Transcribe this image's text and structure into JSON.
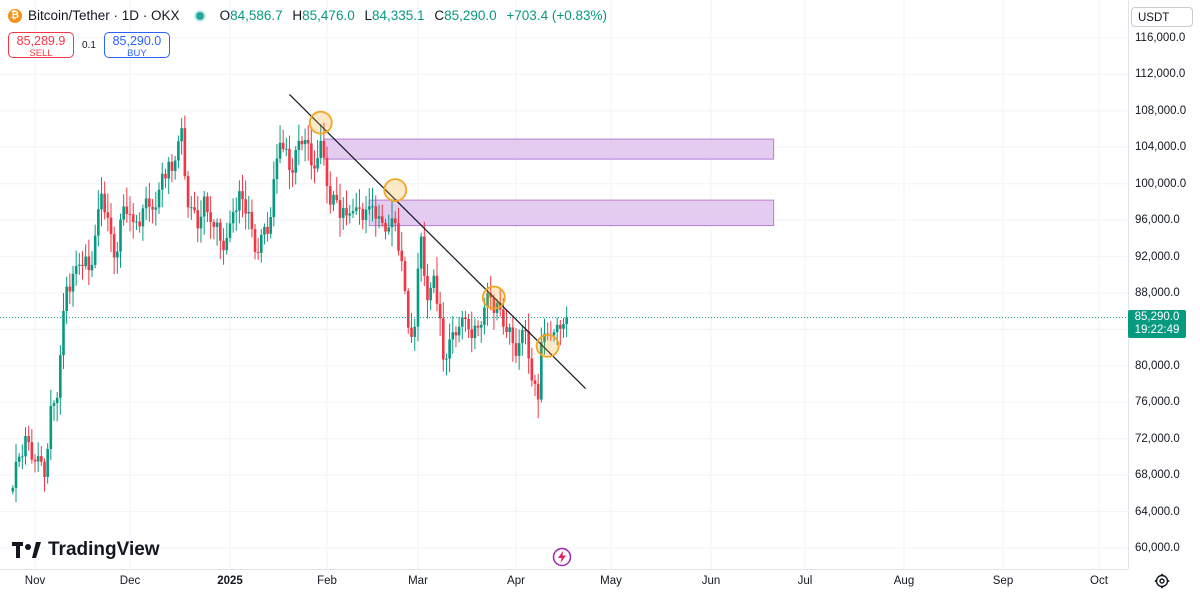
{
  "header": {
    "symbol": "Bitcoin/Tether · 1D · OKX",
    "coin_icon": "₿",
    "ohlc": {
      "o_key": "O",
      "o_val": "84,586.7",
      "h_key": "H",
      "h_val": "85,476.0",
      "l_key": "L",
      "l_val": "84,335.1",
      "c_key": "C",
      "c_val": "85,290.0",
      "change": "+703.4 (+0.83%)"
    }
  },
  "trade": {
    "sell_price": "85,289.9",
    "sell_label": "SELL",
    "spread": "0.1",
    "buy_price": "85,290.0",
    "buy_label": "BUY"
  },
  "currency": "USDT",
  "last_price": {
    "price": "85,290.0",
    "countdown": "19:22:49"
  },
  "watermark": "TradingView",
  "colors": {
    "up": "#089981",
    "down": "#f23645",
    "zone": "#d8b6ea",
    "circle": "#f5a623"
  },
  "chart_data": {
    "type": "candlestick",
    "title": "Bitcoin/Tether · 1D · OKX",
    "y_ticks": [
      "116,000.0",
      "112,000.0",
      "108,000.0",
      "104,000.0",
      "100,000.0",
      "96,000.0",
      "92,000.0",
      "88,000.0",
      "84,000.0",
      "80,000.0",
      "76,000.0",
      "72,000.0",
      "68,000.0",
      "64,000.0",
      "60,000.0"
    ],
    "x_ticks": [
      {
        "label": "Nov",
        "bold": false
      },
      {
        "label": "Dec",
        "bold": false
      },
      {
        "label": "2025",
        "bold": true
      },
      {
        "label": "Feb",
        "bold": false
      },
      {
        "label": "Mar",
        "bold": false
      },
      {
        "label": "Apr",
        "bold": false
      },
      {
        "label": "May",
        "bold": false
      },
      {
        "label": "Jun",
        "bold": false
      },
      {
        "label": "Jul",
        "bold": false
      },
      {
        "label": "Aug",
        "bold": false
      },
      {
        "label": "Sep",
        "bold": false
      },
      {
        "label": "Oct",
        "bold": false
      }
    ],
    "ylim": [
      58000,
      118500
    ],
    "grid": true,
    "last_close": 85290.0,
    "closes": [
      {
        "date": "2024-10-25",
        "close": 66600
      },
      {
        "date": "2024-10-29",
        "close": 72300
      },
      {
        "date": "2024-11-01",
        "close": 69500
      },
      {
        "date": "2024-11-04",
        "close": 67800
      },
      {
        "date": "2024-11-06",
        "close": 75600
      },
      {
        "date": "2024-11-08",
        "close": 76500
      },
      {
        "date": "2024-11-11",
        "close": 88700
      },
      {
        "date": "2024-11-13",
        "close": 90100
      },
      {
        "date": "2024-11-15",
        "close": 91100
      },
      {
        "date": "2024-11-18",
        "close": 90500
      },
      {
        "date": "2024-11-20",
        "close": 94300
      },
      {
        "date": "2024-11-22",
        "close": 98900
      },
      {
        "date": "2024-11-26",
        "close": 91900
      },
      {
        "date": "2024-11-29",
        "close": 97500
      },
      {
        "date": "2024-12-02",
        "close": 95800
      },
      {
        "date": "2024-12-05",
        "close": 97300
      },
      {
        "date": "2024-12-09",
        "close": 97400
      },
      {
        "date": "2024-12-11",
        "close": 101100
      },
      {
        "date": "2024-12-14",
        "close": 101400
      },
      {
        "date": "2024-12-17",
        "close": 106100
      },
      {
        "date": "2024-12-19",
        "close": 97400
      },
      {
        "date": "2024-12-22",
        "close": 95100
      },
      {
        "date": "2024-12-24",
        "close": 98600
      },
      {
        "date": "2024-12-26",
        "close": 95800
      },
      {
        "date": "2024-12-30",
        "close": 92700
      },
      {
        "date": "2025-01-02",
        "close": 96900
      },
      {
        "date": "2025-01-05",
        "close": 98300
      },
      {
        "date": "2025-01-07",
        "close": 96900
      },
      {
        "date": "2025-01-09",
        "close": 92500
      },
      {
        "date": "2025-01-13",
        "close": 94500
      },
      {
        "date": "2025-01-15",
        "close": 100500
      },
      {
        "date": "2025-01-17",
        "close": 104500
      },
      {
        "date": "2025-01-20",
        "close": 101500
      },
      {
        "date": "2025-01-22",
        "close": 103700
      },
      {
        "date": "2025-01-25",
        "close": 104800
      },
      {
        "date": "2025-01-27",
        "close": 102000
      },
      {
        "date": "2025-01-30",
        "close": 104700
      },
      {
        "date": "2025-02-02",
        "close": 97700
      },
      {
        "date": "2025-02-04",
        "close": 98200
      },
      {
        "date": "2025-02-07",
        "close": 96500
      },
      {
        "date": "2025-02-10",
        "close": 97400
      },
      {
        "date": "2025-02-14",
        "close": 97500
      },
      {
        "date": "2025-02-18",
        "close": 95700
      },
      {
        "date": "2025-02-21",
        "close": 96200
      },
      {
        "date": "2025-02-24",
        "close": 91500
      },
      {
        "date": "2025-02-26",
        "close": 84200
      },
      {
        "date": "2025-02-28",
        "close": 84300
      },
      {
        "date": "2025-03-02",
        "close": 94200
      },
      {
        "date": "2025-03-04",
        "close": 87200
      },
      {
        "date": "2025-03-06",
        "close": 89900
      },
      {
        "date": "2025-03-09",
        "close": 80700
      },
      {
        "date": "2025-03-11",
        "close": 82900
      },
      {
        "date": "2025-03-14",
        "close": 84300
      },
      {
        "date": "2025-03-17",
        "close": 84000
      },
      {
        "date": "2025-03-20",
        "close": 84200
      },
      {
        "date": "2025-03-24",
        "close": 87500
      },
      {
        "date": "2025-03-26",
        "close": 86900
      },
      {
        "date": "2025-03-28",
        "close": 84300
      },
      {
        "date": "2025-03-31",
        "close": 82500
      },
      {
        "date": "2025-04-02",
        "close": 82500
      },
      {
        "date": "2025-04-04",
        "close": 83800
      },
      {
        "date": "2025-04-06",
        "close": 78400
      },
      {
        "date": "2025-04-08",
        "close": 76300
      },
      {
        "date": "2025-04-09",
        "close": 82600
      },
      {
        "date": "2025-04-11",
        "close": 83400
      },
      {
        "date": "2025-04-13",
        "close": 83700
      },
      {
        "date": "2025-04-14",
        "close": 84500
      },
      {
        "date": "2025-04-16",
        "close": 84600
      },
      {
        "date": "2025-04-17",
        "close": 85290
      }
    ],
    "drawings": {
      "trendline": {
        "start": {
          "date": "2025-01-20",
          "price": 109800
        },
        "end": {
          "date": "2025-04-23",
          "price": 77500
        }
      },
      "zones": [
        {
          "start": "2025-01-31",
          "end": "2025-06-21",
          "top": 104900,
          "bottom": 102700
        },
        {
          "start": "2025-02-14",
          "end": "2025-06-21",
          "top": 98200,
          "bottom": 95400
        }
      ],
      "circles": [
        {
          "date": "2025-01-30",
          "price": 106700
        },
        {
          "date": "2025-02-22",
          "price": 99300
        },
        {
          "date": "2025-03-25",
          "price": 87500
        },
        {
          "date": "2025-04-11",
          "price": 82200
        }
      ]
    }
  }
}
